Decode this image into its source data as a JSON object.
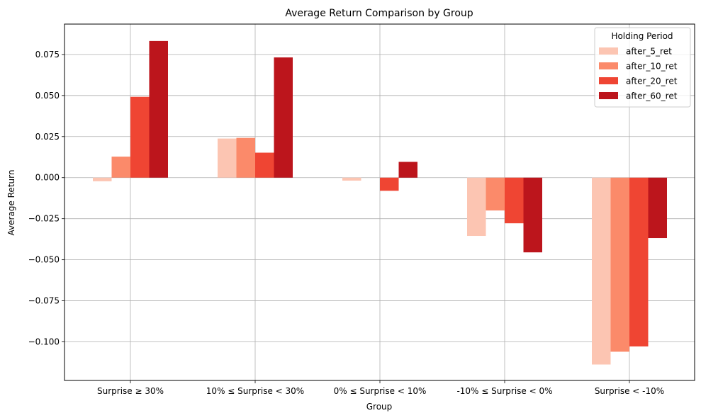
{
  "chart_data": {
    "type": "bar",
    "title": "Average Return Comparison by Group",
    "xlabel": "Group",
    "ylabel": "Average Return",
    "categories": [
      "Surprise ≥ 30%",
      "10% ≤ Surprise < 30%",
      "0% ≤ Surprise < 10%",
      "-10% ≤ Surprise < 0%",
      "Surprise < -10%"
    ],
    "series": [
      {
        "name": "after_5_ret",
        "color": "#fcc5b2",
        "values": [
          -0.0022,
          0.0238,
          -0.0018,
          -0.0355,
          -0.1138
        ]
      },
      {
        "name": "after_10_ret",
        "color": "#fb8a6a",
        "values": [
          0.0128,
          0.0242,
          0.0,
          -0.02,
          -0.106
        ]
      },
      {
        "name": "after_20_ret",
        "color": "#ef4533",
        "values": [
          0.0492,
          0.0152,
          -0.008,
          -0.0278,
          -0.1028
        ]
      },
      {
        "name": "after_60_ret",
        "color": "#bc151c",
        "values": [
          0.0832,
          0.0732,
          0.0096,
          -0.0455,
          -0.0368
        ]
      }
    ],
    "ylim": [
      -0.1235,
      0.0935
    ],
    "yticks": [
      0.075,
      0.05,
      0.025,
      0.0,
      -0.025,
      -0.05,
      -0.075,
      -0.1
    ],
    "ytick_labels": [
      "0.075",
      "0.050",
      "0.025",
      "0.000",
      "−0.025",
      "−0.050",
      "−0.075",
      "−0.100"
    ],
    "grid": true,
    "legend": {
      "title": "Holding Period",
      "position": "top-right"
    }
  }
}
